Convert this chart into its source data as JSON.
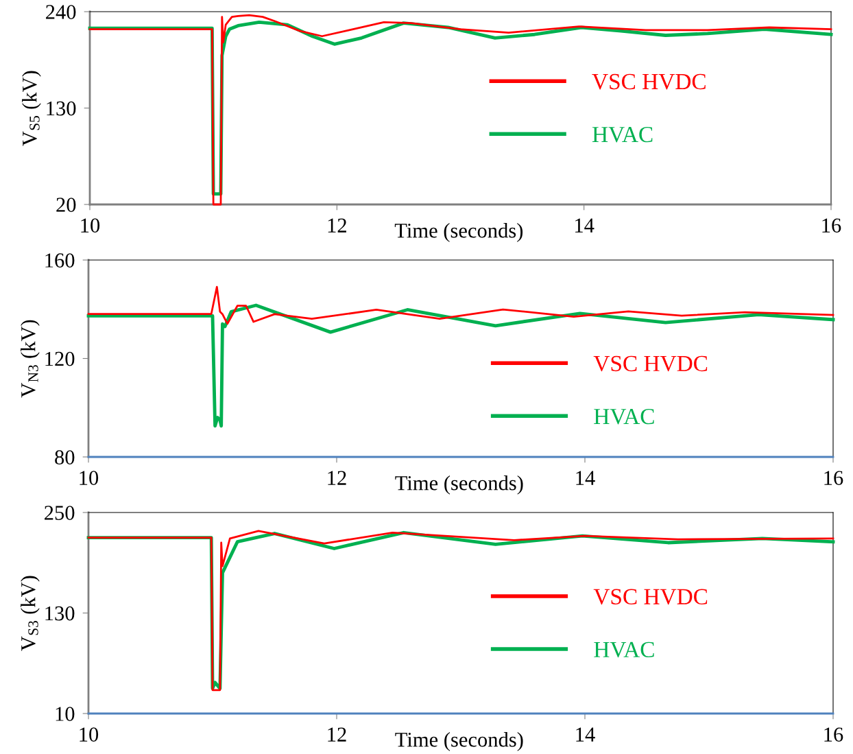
{
  "chart_data": [
    {
      "type": "line",
      "ylabel": "V$_{S5}$ (kV)",
      "xlabel": "Time (seconds)",
      "xlim": [
        10,
        16
      ],
      "xticks": [
        10,
        12,
        14,
        16
      ],
      "ylim": [
        20,
        240
      ],
      "yticks": [
        20,
        130,
        240
      ],
      "legend": "right",
      "grid": false,
      "series": [
        {
          "name": "VSC HVDC",
          "color": "#ff0000",
          "x": [
            10,
            10.99,
            11.0,
            11.06,
            11.07,
            11.08,
            11.1,
            11.15,
            11.2,
            11.29,
            11.4,
            11.5,
            11.7,
            11.88,
            12.1,
            12.38,
            12.6,
            13.0,
            13.39,
            13.96,
            14.5,
            15.0,
            15.5,
            16
          ],
          "values": [
            220,
            220,
            20,
            20,
            234,
            205,
            225,
            234,
            235,
            236,
            234,
            229,
            218,
            212,
            219,
            228,
            227,
            220,
            216,
            223,
            219,
            219,
            222,
            220
          ]
        },
        {
          "name": "HVAC",
          "color": "#00b050",
          "x": [
            10,
            10.99,
            11.0,
            11.06,
            11.07,
            11.1,
            11.13,
            11.2,
            11.37,
            11.6,
            11.8,
            11.98,
            12.2,
            12.54,
            12.9,
            13.28,
            13.6,
            13.98,
            14.3,
            14.66,
            15.0,
            15.46,
            16
          ],
          "values": [
            221,
            221,
            32,
            32,
            190,
            212,
            220,
            224,
            228,
            225,
            212,
            203,
            210,
            227,
            222,
            210,
            214,
            222,
            218,
            213,
            215,
            220,
            214
          ]
        }
      ]
    },
    {
      "type": "line",
      "ylabel": "V$_{N3}$ (kV)",
      "xlabel": "Time (seconds)",
      "xlim": [
        10,
        16
      ],
      "xticks": [
        10,
        12,
        14,
        16
      ],
      "ylim": [
        80,
        160
      ],
      "yticks": [
        80,
        120,
        160
      ],
      "legend": "right",
      "grid": false,
      "series": [
        {
          "name": "VSC HVDC",
          "color": "#ff0000",
          "x": [
            10,
            10.99,
            11.035,
            11.06,
            11.08,
            11.1,
            11.12,
            11.2,
            11.27,
            11.33,
            11.5,
            11.8,
            12.32,
            12.83,
            13.34,
            13.91,
            14.35,
            14.78,
            15.29,
            16
          ],
          "values": [
            138.1,
            138.1,
            149.1,
            139,
            138,
            136,
            134.1,
            141.4,
            141.4,
            134.9,
            138,
            136.1,
            139.8,
            136.1,
            139.9,
            137,
            139.1,
            137.4,
            138.8,
            137.7
          ]
        },
        {
          "name": "HVAC",
          "color": "#00b050",
          "x": [
            10,
            11.0,
            11.02,
            11.04,
            11.06,
            11.07,
            11.08,
            11.1,
            11.15,
            11.35,
            11.95,
            12.57,
            13.28,
            13.96,
            14.65,
            15.4,
            16
          ],
          "values": [
            137.3,
            137.3,
            92.6,
            96,
            95,
            92.6,
            134,
            133,
            139,
            141.6,
            130.7,
            139.8,
            133.3,
            138.3,
            134.6,
            137.8,
            135.8
          ]
        }
      ]
    },
    {
      "type": "line",
      "ylabel": "V$_{S3}$ (kV)",
      "xlabel": "Time (seconds)",
      "xlim": [
        10,
        16
      ],
      "xticks": [
        10,
        12,
        14,
        16
      ],
      "ylim": [
        10,
        250
      ],
      "yticks": [
        10,
        130,
        250
      ],
      "legend": "right",
      "grid": false,
      "series": [
        {
          "name": "VSC HVDC",
          "color": "#ff0000",
          "x": [
            10,
            10.99,
            11.0,
            11.06,
            11.07,
            11.08,
            11.14,
            11.37,
            11.9,
            12.45,
            13.43,
            14.0,
            14.75,
            16
          ],
          "values": [
            220,
            220,
            38,
            38,
            214,
            186,
            219,
            228,
            213,
            226,
            217,
            222,
            218,
            219
          ]
        },
        {
          "name": "HVAC",
          "color": "#00b050",
          "x": [
            10,
            10.99,
            11.0,
            11.02,
            11.06,
            11.08,
            11.2,
            11.5,
            11.98,
            12.54,
            13.28,
            13.98,
            14.67,
            15.43,
            16
          ],
          "values": [
            220,
            220,
            40,
            47,
            40,
            178,
            215,
            225,
            207,
            226,
            212,
            222,
            214,
            219,
            215
          ]
        }
      ]
    }
  ]
}
